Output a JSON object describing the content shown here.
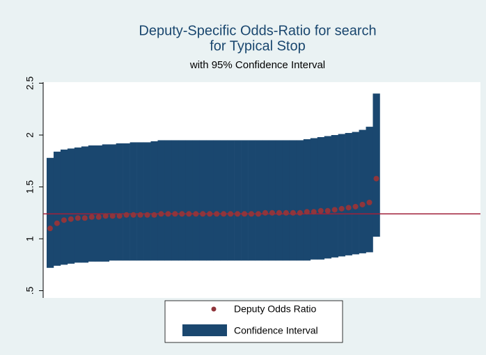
{
  "chart_data": {
    "type": "range",
    "title": [
      "Deputy-Specific Odds-Ratio for search",
      "for Typical Stop"
    ],
    "subtitle": "with 95% Confidence Interval",
    "x": [
      1,
      2,
      3,
      4,
      5,
      6,
      7,
      8,
      9,
      10,
      11,
      12,
      13,
      14,
      15,
      16,
      17,
      18,
      19,
      20,
      21,
      22,
      23,
      24,
      25,
      26,
      27,
      28,
      29,
      30,
      31,
      32,
      33,
      34,
      35,
      36,
      37,
      38,
      39,
      40,
      41,
      42,
      43,
      44,
      45,
      46,
      47,
      48
    ],
    "xlim": [
      0,
      63
    ],
    "ylim": [
      0.43,
      2.51
    ],
    "yticks": [
      {
        "value": 0.5,
        "label": ".5"
      },
      1,
      1.5,
      2,
      2.5
    ],
    "reference_line": {
      "value": 1.24,
      "color": "#a0203a"
    },
    "series": [
      {
        "name": "Deputy Odds Ratio",
        "color": "#90353b",
        "values": [
          1.1,
          1.15,
          1.18,
          1.19,
          1.2,
          1.2,
          1.21,
          1.21,
          1.22,
          1.22,
          1.22,
          1.23,
          1.23,
          1.23,
          1.23,
          1.23,
          1.24,
          1.24,
          1.24,
          1.24,
          1.24,
          1.24,
          1.24,
          1.24,
          1.24,
          1.24,
          1.24,
          1.24,
          1.24,
          1.24,
          1.24,
          1.25,
          1.25,
          1.25,
          1.25,
          1.25,
          1.25,
          1.26,
          1.26,
          1.27,
          1.27,
          1.28,
          1.29,
          1.3,
          1.31,
          1.33,
          1.35,
          1.58
        ]
      },
      {
        "name": "Confidence Interval",
        "color": "#1a476f",
        "low": [
          0.72,
          0.74,
          0.75,
          0.76,
          0.77,
          0.77,
          0.78,
          0.78,
          0.78,
          0.79,
          0.79,
          0.79,
          0.79,
          0.79,
          0.79,
          0.79,
          0.79,
          0.79,
          0.79,
          0.79,
          0.79,
          0.79,
          0.79,
          0.79,
          0.79,
          0.79,
          0.79,
          0.79,
          0.79,
          0.79,
          0.79,
          0.79,
          0.79,
          0.79,
          0.79,
          0.79,
          0.79,
          0.79,
          0.8,
          0.8,
          0.81,
          0.82,
          0.83,
          0.84,
          0.85,
          0.86,
          0.87,
          1.02
        ],
        "high": [
          1.78,
          1.84,
          1.86,
          1.87,
          1.88,
          1.89,
          1.9,
          1.9,
          1.91,
          1.91,
          1.92,
          1.92,
          1.93,
          1.93,
          1.93,
          1.94,
          1.95,
          1.95,
          1.95,
          1.95,
          1.95,
          1.95,
          1.95,
          1.95,
          1.95,
          1.95,
          1.95,
          1.95,
          1.95,
          1.95,
          1.95,
          1.95,
          1.95,
          1.95,
          1.95,
          1.95,
          1.95,
          1.96,
          1.97,
          1.98,
          1.99,
          2.0,
          2.01,
          2.02,
          2.03,
          2.05,
          2.08,
          2.4
        ]
      }
    ]
  }
}
